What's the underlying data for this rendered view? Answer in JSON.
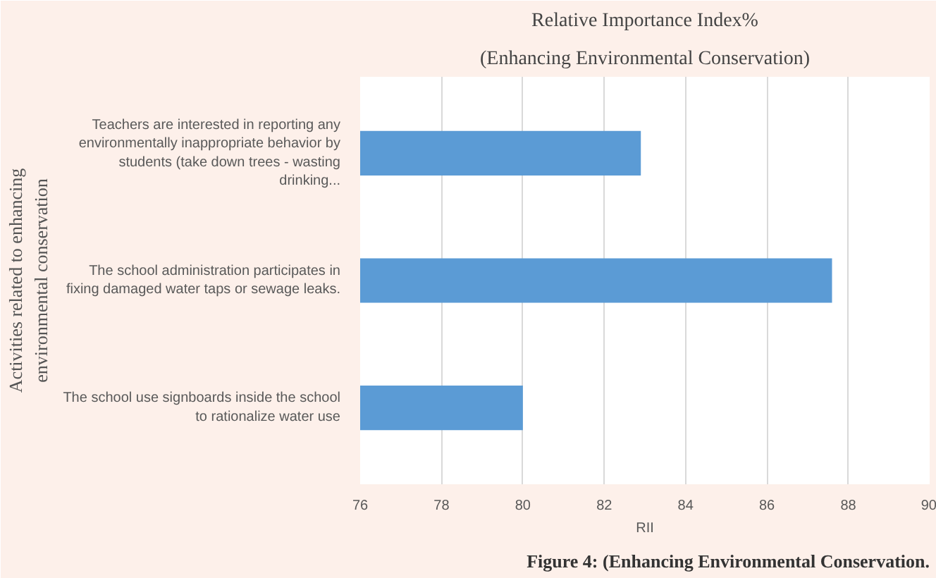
{
  "chart_data": {
    "type": "bar",
    "orientation": "horizontal",
    "title": "Relative Importance Index%",
    "subtitle": "(Enhancing Environmental Conservation)",
    "xlabel": "RII",
    "ylabel": "Activities related to enhancing environmental conservation",
    "categories": [
      "Teachers are interested in reporting any environmentally inappropriate behavior by students (take down trees - wasting drinking...",
      "The school administration participates in fixing damaged water taps or sewage leaks.",
      "The school use signboards inside the school to rationalize water use"
    ],
    "values": [
      82.9,
      87.6,
      80.0
    ],
    "color": "#5b9bd5",
    "xlim": [
      76,
      90
    ],
    "xticks": [
      76,
      78,
      80,
      82,
      84,
      86,
      88,
      90
    ],
    "grid": "x",
    "annotations": [
      "Figure 4: (Enhancing Environmental Conservation."
    ]
  }
}
